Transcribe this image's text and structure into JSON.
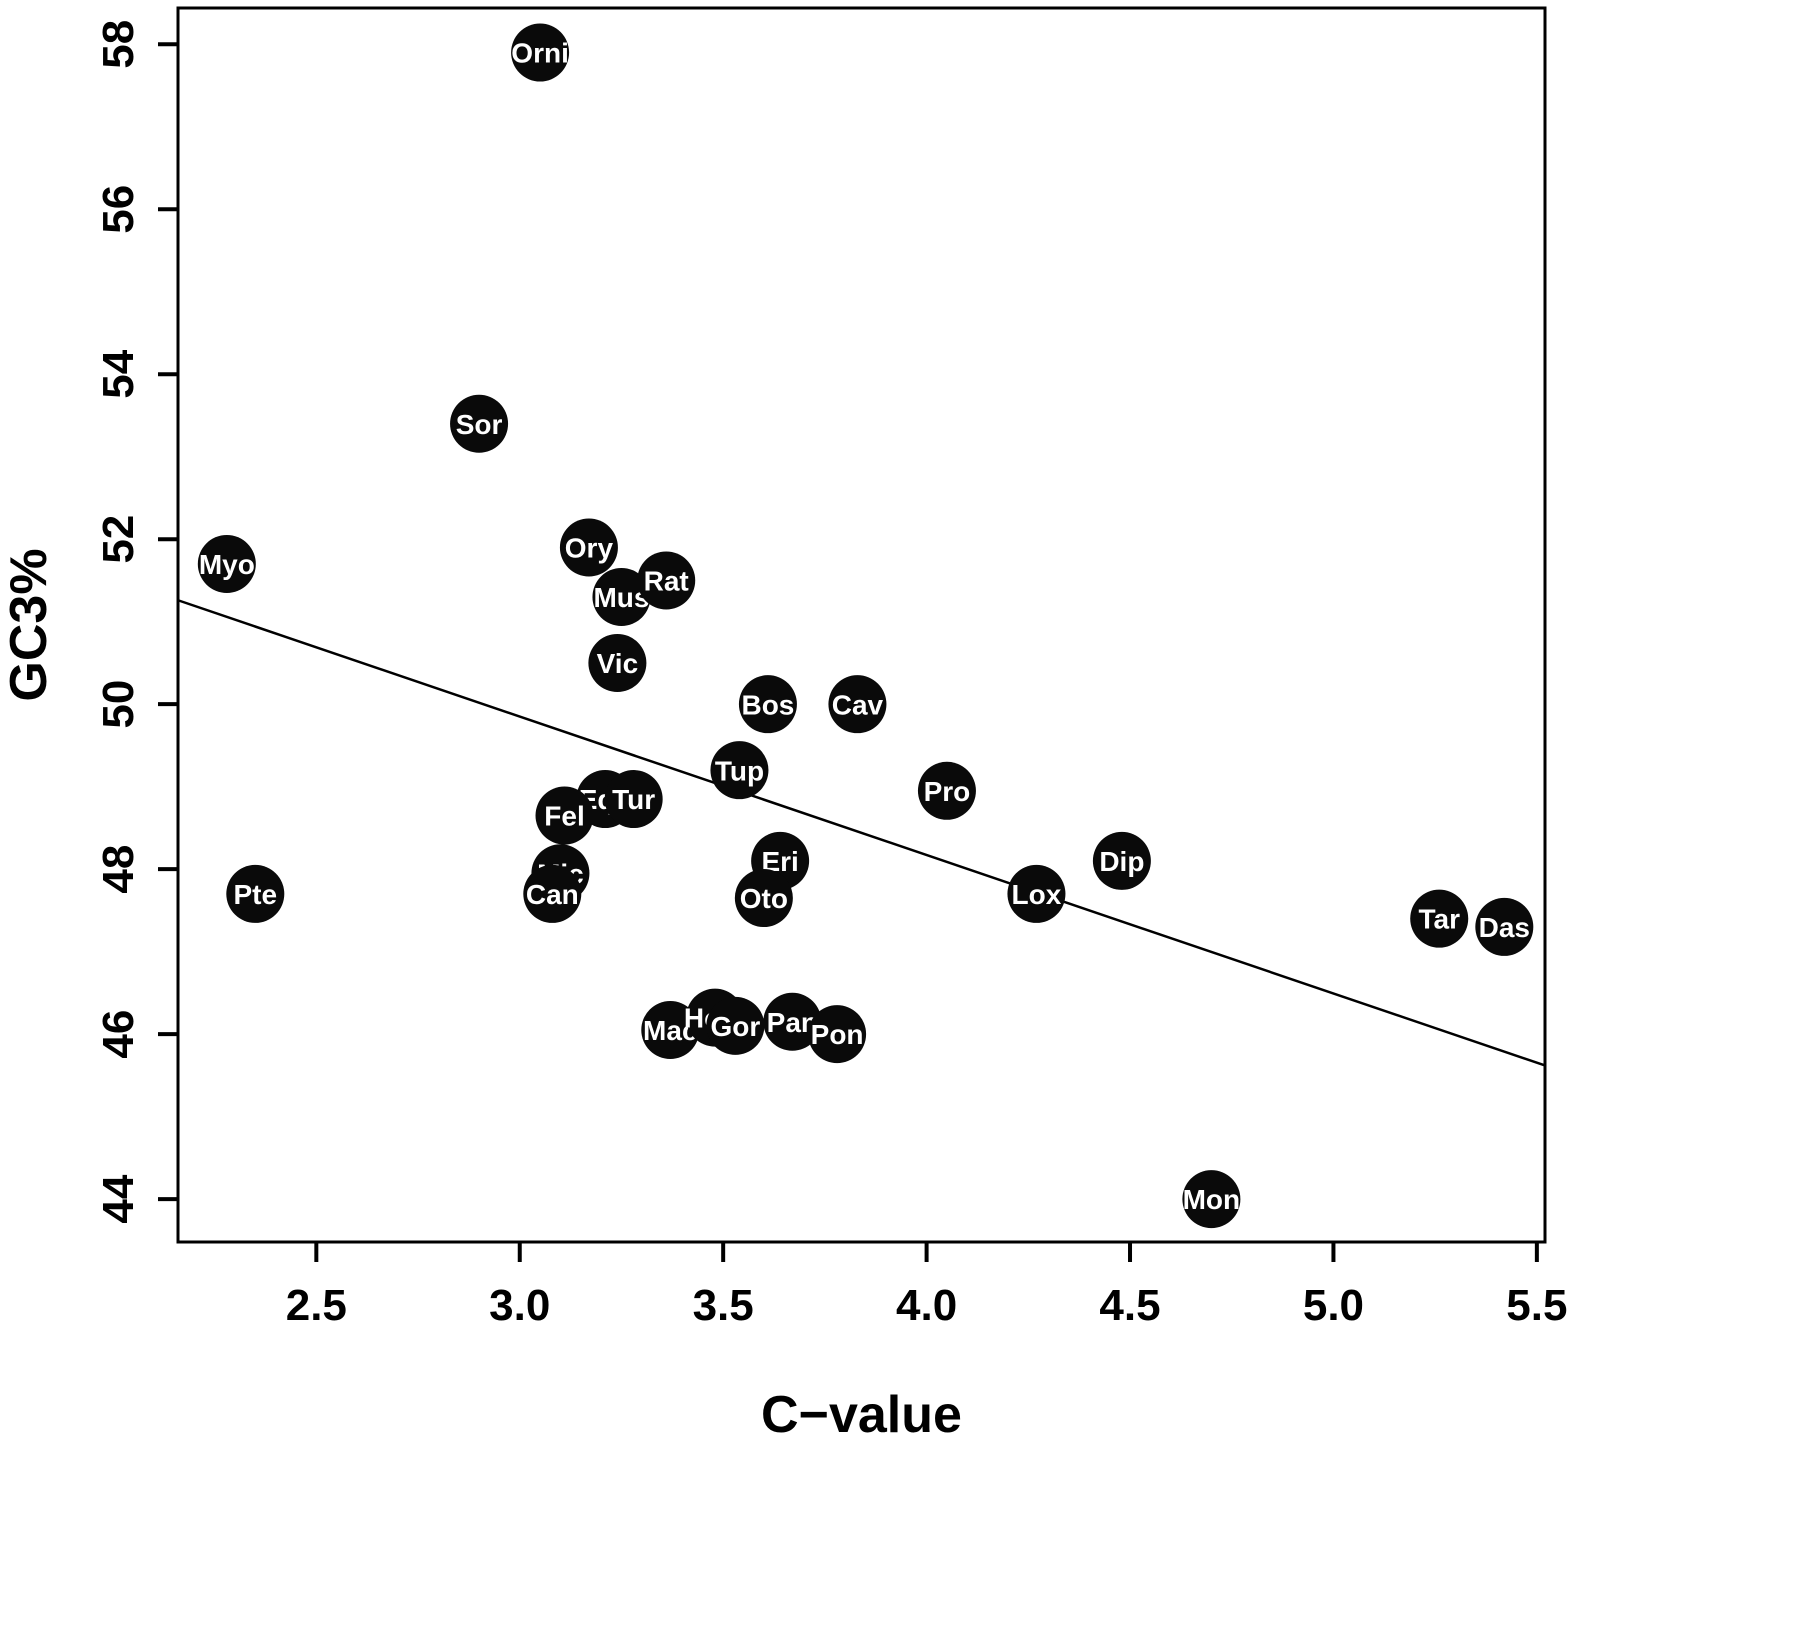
{
  "chart_data": {
    "type": "scatter",
    "title": "",
    "xlabel": "C−value",
    "ylabel": "GC3%",
    "xlim": [
      2.16,
      5.52
    ],
    "ylim": [
      43.48,
      58.44
    ],
    "grid": false,
    "legend": "none",
    "point_color": "#0a0a0a",
    "point_label_color": "#ffffff",
    "axis_color": "#000000",
    "xticks": [
      {
        "value": 2.5,
        "label": "2.5"
      },
      {
        "value": 3.0,
        "label": "3.0"
      },
      {
        "value": 3.5,
        "label": "3.5"
      },
      {
        "value": 4.0,
        "label": "4.0"
      },
      {
        "value": 4.5,
        "label": "4.5"
      },
      {
        "value": 5.0,
        "label": "5.0"
      },
      {
        "value": 5.5,
        "label": "5.5"
      }
    ],
    "yticks": [
      {
        "value": 44,
        "label": "44"
      },
      {
        "value": 46,
        "label": "46"
      },
      {
        "value": 48,
        "label": "48"
      },
      {
        "value": 50,
        "label": "50"
      },
      {
        "value": 52,
        "label": "52"
      },
      {
        "value": 54,
        "label": "54"
      },
      {
        "value": 56,
        "label": "56"
      },
      {
        "value": 58,
        "label": "58"
      }
    ],
    "points": [
      {
        "label": "Orni",
        "x": 3.05,
        "y": 57.9
      },
      {
        "label": "Sor",
        "x": 2.9,
        "y": 53.4
      },
      {
        "label": "Myo",
        "x": 2.28,
        "y": 51.7
      },
      {
        "label": "Ory",
        "x": 3.17,
        "y": 51.9
      },
      {
        "label": "Mus",
        "x": 3.25,
        "y": 51.3
      },
      {
        "label": "Rat",
        "x": 3.36,
        "y": 51.5
      },
      {
        "label": "Vic",
        "x": 3.24,
        "y": 50.5
      },
      {
        "label": "Bos",
        "x": 3.61,
        "y": 50.0
      },
      {
        "label": "Cav",
        "x": 3.83,
        "y": 50.0
      },
      {
        "label": "Tup",
        "x": 3.54,
        "y": 49.2
      },
      {
        "label": "Pro",
        "x": 4.05,
        "y": 48.95
      },
      {
        "label": "Equ",
        "x": 3.21,
        "y": 48.85
      },
      {
        "label": "Tur",
        "x": 3.28,
        "y": 48.85
      },
      {
        "label": "Fel",
        "x": 3.11,
        "y": 48.65
      },
      {
        "label": "Mic",
        "x": 3.1,
        "y": 47.95
      },
      {
        "label": "Can",
        "x": 3.08,
        "y": 47.7
      },
      {
        "label": "Eri",
        "x": 3.64,
        "y": 48.1
      },
      {
        "label": "Oto",
        "x": 3.6,
        "y": 47.65
      },
      {
        "label": "Pte",
        "x": 2.35,
        "y": 47.7
      },
      {
        "label": "Lox",
        "x": 4.27,
        "y": 47.7
      },
      {
        "label": "Dip",
        "x": 4.48,
        "y": 48.1
      },
      {
        "label": "Tar",
        "x": 5.26,
        "y": 47.4
      },
      {
        "label": "Das",
        "x": 5.42,
        "y": 47.3
      },
      {
        "label": "Mac",
        "x": 3.37,
        "y": 46.05
      },
      {
        "label": "Hom",
        "x": 3.48,
        "y": 46.2
      },
      {
        "label": "Gor",
        "x": 3.53,
        "y": 46.1
      },
      {
        "label": "Pan",
        "x": 3.67,
        "y": 46.15
      },
      {
        "label": "Pon",
        "x": 3.78,
        "y": 46.0
      },
      {
        "label": "Mon",
        "x": 4.7,
        "y": 44.0
      }
    ],
    "regression_line": {
      "x1": 2.16,
      "y1": 51.26,
      "x2": 5.52,
      "y2": 45.62
    }
  }
}
